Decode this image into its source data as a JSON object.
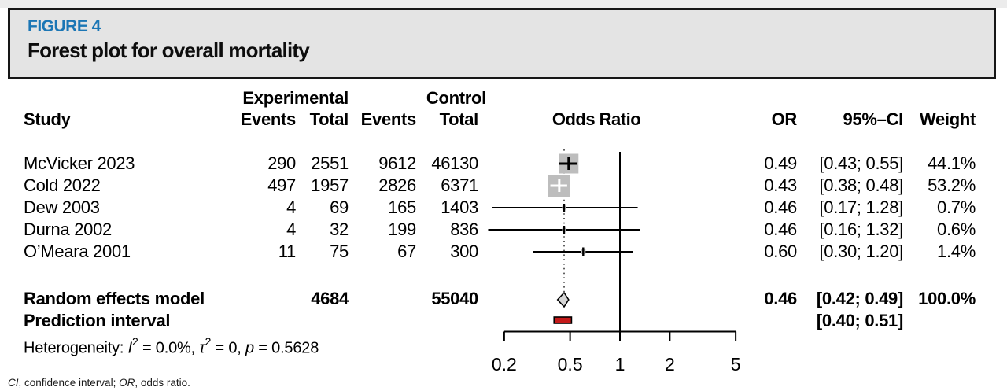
{
  "figure": {
    "label": "FIGURE 4",
    "title": "Forest plot for overall mortality",
    "label_color": "#1b76b5"
  },
  "table": {
    "headers": {
      "study": "Study",
      "experimental": "Experimental",
      "control": "Control",
      "exp_events": "Events",
      "exp_total": "Total",
      "ctrl_events": "Events",
      "ctrl_total": "Total",
      "odds_ratio": "Odds Ratio",
      "or": "OR",
      "ci": "95%–CI",
      "weight": "Weight"
    },
    "rows": [
      {
        "name": "McVicker 2023",
        "exp_events": "290",
        "exp_total": "2551",
        "ctrl_events": "9612",
        "ctrl_total": "46130",
        "or": "0.49",
        "ci": "[0.43; 0.55]",
        "weight": "44.1%"
      },
      {
        "name": "Cold 2022",
        "exp_events": "497",
        "exp_total": "1957",
        "ctrl_events": "2826",
        "ctrl_total": "6371",
        "or": "0.43",
        "ci": "[0.38; 0.48]",
        "weight": "53.2%"
      },
      {
        "name": "Dew 2003",
        "exp_events": "4",
        "exp_total": "69",
        "ctrl_events": "165",
        "ctrl_total": "1403",
        "or": "0.46",
        "ci": "[0.17; 1.28]",
        "weight": "0.7%"
      },
      {
        "name": "Durna 2002",
        "exp_events": "4",
        "exp_total": "32",
        "ctrl_events": "199",
        "ctrl_total": "836",
        "or": "0.46",
        "ci": "[0.16; 1.32]",
        "weight": "0.6%"
      },
      {
        "name": "O’Meara 2001",
        "exp_events": "11",
        "exp_total": "75",
        "ctrl_events": "67",
        "ctrl_total": "300",
        "or": "0.60",
        "ci": "[0.30; 1.20]",
        "weight": "1.4%"
      }
    ],
    "summary": {
      "label": "Random effects model",
      "exp_total": "4684",
      "ctrl_total": "55040",
      "or": "0.46",
      "ci": "[0.42; 0.49]",
      "weight": "100.0%"
    },
    "prediction": {
      "label": "Prediction interval",
      "ci": "[0.40; 0.51]"
    }
  },
  "heterogeneity": {
    "prefix": "Heterogeneity: ",
    "i_label": "I",
    "i_sup": "2",
    "seg1": " = 0.0%, ",
    "tau_label": "τ",
    "tau_sup": "2",
    "seg2": " = 0, ",
    "p_label": "p",
    "seg3": " = 0.5628"
  },
  "footnote": {
    "ci_abbr": "CI",
    "seg1": ", confidence interval; ",
    "or_abbr": "OR",
    "seg2": ", odds ratio."
  },
  "chart_data": {
    "type": "forest",
    "title": "Forest plot for overall mortality",
    "effect_measure": "Odds Ratio",
    "x_scale": "log",
    "x_ticks": [
      0.2,
      0.5,
      1,
      2,
      5
    ],
    "reference_line": 1,
    "studies": [
      {
        "study": "McVicker 2023",
        "exp_events": 290,
        "exp_total": 2551,
        "ctrl_events": 9612,
        "ctrl_total": 46130,
        "or": 0.49,
        "ci_low": 0.43,
        "ci_high": 0.55,
        "weight_pct": 44.1
      },
      {
        "study": "Cold 2022",
        "exp_events": 497,
        "exp_total": 1957,
        "ctrl_events": 2826,
        "ctrl_total": 6371,
        "or": 0.43,
        "ci_low": 0.38,
        "ci_high": 0.48,
        "weight_pct": 53.2
      },
      {
        "study": "Dew 2003",
        "exp_events": 4,
        "exp_total": 69,
        "ctrl_events": 165,
        "ctrl_total": 1403,
        "or": 0.46,
        "ci_low": 0.17,
        "ci_high": 1.28,
        "weight_pct": 0.7
      },
      {
        "study": "Durna 2002",
        "exp_events": 4,
        "exp_total": 32,
        "ctrl_events": 199,
        "ctrl_total": 836,
        "or": 0.46,
        "ci_low": 0.16,
        "ci_high": 1.32,
        "weight_pct": 0.6
      },
      {
        "study": "O’Meara 2001",
        "exp_events": 11,
        "exp_total": 75,
        "ctrl_events": 67,
        "ctrl_total": 300,
        "or": 0.6,
        "ci_low": 0.3,
        "ci_high": 1.2,
        "weight_pct": 1.4
      }
    ],
    "summary": {
      "label": "Random effects model",
      "model": "random effects",
      "exp_total": 4684,
      "ctrl_total": 55040,
      "or": 0.46,
      "ci_low": 0.42,
      "ci_high": 0.49,
      "weight_pct": 100.0
    },
    "prediction_interval": {
      "low": 0.4,
      "high": 0.51
    },
    "heterogeneity": {
      "I2": "0.0%",
      "tau2": 0,
      "p": 0.5628
    }
  },
  "plot_style": {
    "square_fill": "#bdbdbd",
    "square_sizes": [
      25,
      28,
      5,
      5,
      6
    ],
    "ci_colors": [
      "#000000",
      "#ffffff",
      "#000000",
      "#000000",
      "#000000"
    ],
    "tick_heights": [
      16,
      16,
      10,
      10,
      11
    ],
    "diamond_fill": "#d5d5d5",
    "prediction_fill": "#c41a1a"
  }
}
